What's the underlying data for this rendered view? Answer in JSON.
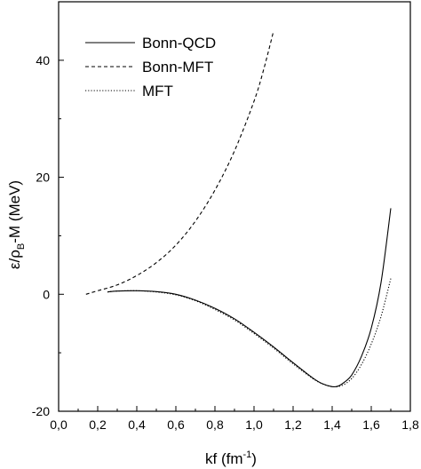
{
  "chart_data": {
    "type": "line",
    "title": "",
    "xlabel": "kf (fm⁻¹)",
    "ylabel": "ε/ρB-M (MeV)",
    "xlim": [
      0.0,
      1.8
    ],
    "ylim": [
      -20,
      50
    ],
    "xticks": [
      "0,0",
      "0,2",
      "0,4",
      "0,6",
      "0,8",
      "1,0",
      "1,2",
      "1,4",
      "1,6",
      "1,8"
    ],
    "yticks": [
      "-20",
      "0",
      "20",
      "40"
    ],
    "legend_position": "top-left",
    "grid": false,
    "series": [
      {
        "name": "Bonn-QCD",
        "style": "solid",
        "x": [
          0.25,
          0.3,
          0.4,
          0.5,
          0.6,
          0.7,
          0.8,
          0.9,
          1.0,
          1.1,
          1.2,
          1.3,
          1.35,
          1.4,
          1.43,
          1.46,
          1.5,
          1.55,
          1.6,
          1.65,
          1.7
        ],
        "y": [
          0.4,
          0.55,
          0.6,
          0.45,
          0.0,
          -1.0,
          -2.4,
          -4.2,
          -6.5,
          -9.0,
          -11.7,
          -14.3,
          -15.3,
          -15.8,
          -15.7,
          -15.1,
          -13.8,
          -10.6,
          -5.8,
          2.0,
          14.7
        ]
      },
      {
        "name": "Bonn-MFT",
        "style": "dashed",
        "x": [
          0.14,
          0.2,
          0.3,
          0.4,
          0.5,
          0.6,
          0.7,
          0.8,
          0.9,
          1.0,
          1.05,
          1.1
        ],
        "y": [
          0.0,
          0.6,
          1.6,
          3.2,
          5.4,
          8.4,
          12.5,
          17.8,
          24.5,
          33.0,
          38.5,
          45.0
        ]
      },
      {
        "name": "MFT",
        "style": "dotted",
        "x": [
          0.25,
          0.3,
          0.4,
          0.5,
          0.6,
          0.7,
          0.8,
          0.9,
          1.0,
          1.1,
          1.2,
          1.3,
          1.35,
          1.4,
          1.45,
          1.5,
          1.55,
          1.6,
          1.65,
          1.7
        ],
        "y": [
          0.4,
          0.55,
          0.6,
          0.4,
          -0.1,
          -1.1,
          -2.6,
          -4.4,
          -6.7,
          -9.2,
          -11.9,
          -14.4,
          -15.3,
          -15.8,
          -15.6,
          -14.4,
          -12.0,
          -8.5,
          -3.8,
          2.7
        ]
      }
    ]
  }
}
